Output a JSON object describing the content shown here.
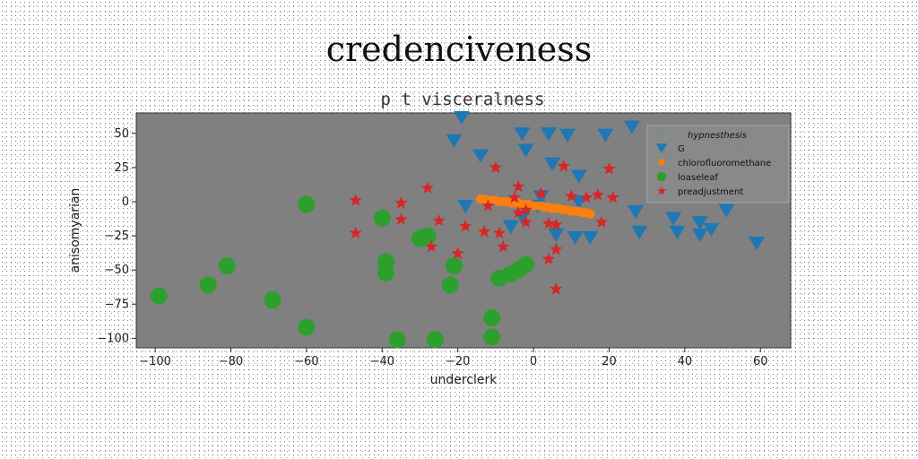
{
  "chart_data": {
    "type": "scatter",
    "title": "credenciveness",
    "subtitle": "p t visceralness",
    "xlabel": "underclerk",
    "ylabel": "anisomyarian",
    "xlim": [
      -105,
      68
    ],
    "ylim": [
      -107,
      65
    ],
    "xticks": [
      -100,
      -80,
      -60,
      -40,
      -20,
      0,
      20,
      40,
      60
    ],
    "yticks": [
      50,
      25,
      0,
      -25,
      -50,
      -75,
      -100
    ],
    "xtick_labels": [
      "−100",
      "−80",
      "−60",
      "−40",
      "−20",
      "0",
      "20",
      "40",
      "60"
    ],
    "ytick_labels": [
      "50",
      "25",
      "0",
      "−25",
      "−50",
      "−75",
      "−100"
    ],
    "grid": false,
    "plot_background": "#808080",
    "legend": {
      "title": "hypnesthesis",
      "placement": "top-right"
    },
    "series": [
      {
        "name": "G",
        "marker": "triangle-down",
        "color": "#1f77b4",
        "points": [
          [
            -19,
            62
          ],
          [
            -21,
            45
          ],
          [
            -14,
            34
          ],
          [
            -3,
            50
          ],
          [
            -2,
            38
          ],
          [
            4,
            50
          ],
          [
            9,
            49
          ],
          [
            5,
            28
          ],
          [
            12,
            19
          ],
          [
            19,
            49
          ],
          [
            26,
            55
          ],
          [
            33,
            51
          ],
          [
            36,
            34
          ],
          [
            49,
            46
          ],
          [
            54,
            36
          ],
          [
            -18,
            -3
          ],
          [
            -3,
            -11
          ],
          [
            -6,
            -18
          ],
          [
            6,
            -24
          ],
          [
            11,
            -26
          ],
          [
            15,
            -26
          ],
          [
            27,
            -7
          ],
          [
            28,
            -22
          ],
          [
            37,
            -12
          ],
          [
            38,
            -22
          ],
          [
            44,
            -15
          ],
          [
            47,
            -20
          ],
          [
            44,
            -24
          ],
          [
            51,
            -6
          ],
          [
            59,
            -30
          ],
          [
            1,
            -3
          ],
          [
            2,
            4
          ],
          [
            12,
            0
          ]
        ]
      },
      {
        "name": "chlorofluoromethane",
        "marker": "circle-small",
        "color": "#ff7f0e",
        "points": [
          [
            -14,
            2
          ],
          [
            -13,
            2
          ],
          [
            -12,
            1
          ],
          [
            -11,
            1
          ],
          [
            -10,
            1
          ],
          [
            -9,
            0
          ],
          [
            -8,
            0
          ],
          [
            -7,
            0
          ],
          [
            -6,
            -1
          ],
          [
            -5,
            -1
          ],
          [
            -4,
            -1
          ],
          [
            -3,
            -2
          ],
          [
            -2,
            -2
          ],
          [
            -1,
            -2
          ],
          [
            0,
            -3
          ],
          [
            1,
            -3
          ],
          [
            2,
            -3
          ],
          [
            3,
            -4
          ],
          [
            4,
            -4
          ],
          [
            5,
            -5
          ],
          [
            6,
            -5
          ],
          [
            7,
            -5
          ],
          [
            8,
            -6
          ],
          [
            9,
            -6
          ],
          [
            10,
            -7
          ],
          [
            11,
            -7
          ],
          [
            12,
            -7
          ],
          [
            13,
            -8
          ],
          [
            14,
            -8
          ],
          [
            15,
            -9
          ]
        ]
      },
      {
        "name": "loaseleaf",
        "marker": "circle",
        "color": "#2ca02c",
        "points": [
          [
            -99,
            -69
          ],
          [
            -86,
            -61
          ],
          [
            -81,
            -47
          ],
          [
            -69,
            -72
          ],
          [
            -60,
            -2
          ],
          [
            -60,
            -92
          ],
          [
            -40,
            -12
          ],
          [
            -39,
            -44
          ],
          [
            -39,
            -52
          ],
          [
            -36,
            -101
          ],
          [
            -30,
            -27
          ],
          [
            -28,
            -25
          ],
          [
            -26,
            -101
          ],
          [
            -21,
            -47
          ],
          [
            -22,
            -61
          ],
          [
            -11,
            -99
          ],
          [
            -11,
            -85
          ],
          [
            -9,
            -56
          ],
          [
            -6,
            -53
          ],
          [
            -4,
            -50
          ],
          [
            -2,
            -46
          ]
        ]
      },
      {
        "name": "preadjustment",
        "marker": "star",
        "color": "#d62728",
        "points": [
          [
            -47,
            1
          ],
          [
            -47,
            -23
          ],
          [
            -35,
            -1
          ],
          [
            -35,
            -13
          ],
          [
            -28,
            10
          ],
          [
            -25,
            -14
          ],
          [
            -27,
            -33
          ],
          [
            -20,
            -38
          ],
          [
            -18,
            -18
          ],
          [
            -13,
            -22
          ],
          [
            -10,
            25
          ],
          [
            -9,
            -23
          ],
          [
            -8,
            -33
          ],
          [
            -5,
            3
          ],
          [
            -4,
            -8
          ],
          [
            -2,
            -15
          ],
          [
            -4,
            11
          ],
          [
            2,
            6
          ],
          [
            4,
            -16
          ],
          [
            6,
            -17
          ],
          [
            4,
            -42
          ],
          [
            6,
            -35
          ],
          [
            8,
            26
          ],
          [
            10,
            4
          ],
          [
            14,
            3
          ],
          [
            17,
            5
          ],
          [
            20,
            24
          ],
          [
            21,
            3
          ],
          [
            6,
            -64
          ],
          [
            -12,
            -3
          ],
          [
            18,
            -15
          ],
          [
            -2,
            -6
          ]
        ]
      }
    ]
  }
}
